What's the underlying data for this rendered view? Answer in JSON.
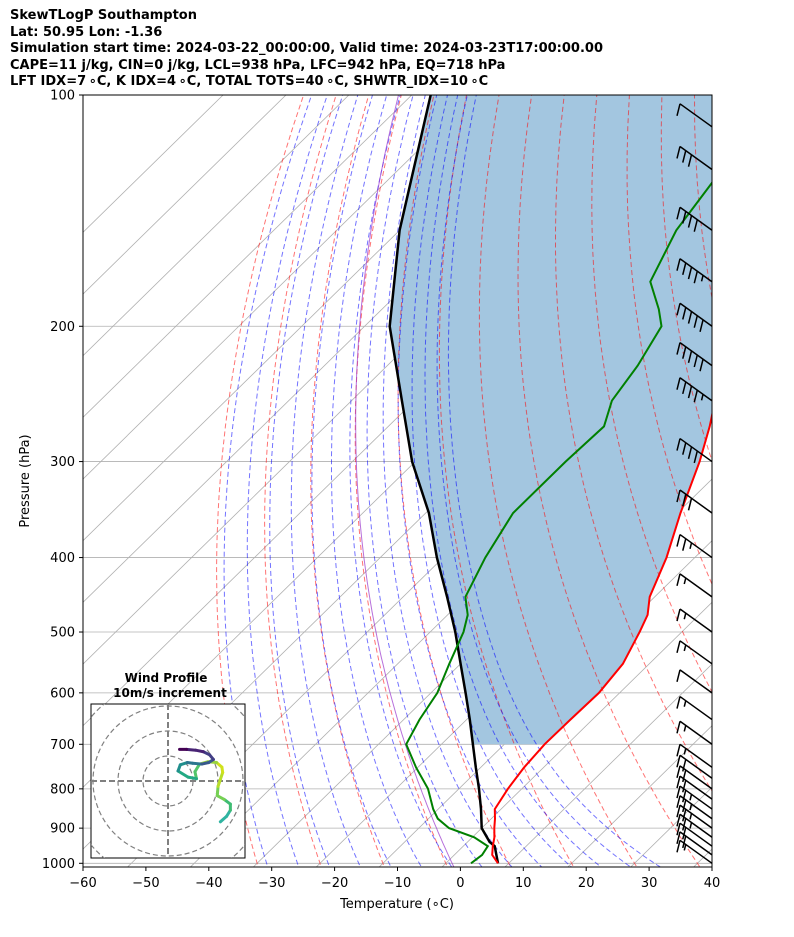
{
  "header": {
    "line1": "SkewTLogP Southampton",
    "line2": "Lat: 50.95   Lon: -1.36",
    "line3": "Simulation start time: 2024-03-22_00:00:00, Valid time: 2024-03-23T17:00:00.00",
    "line4": "CAPE=11 j/kg, CIN=0 j/kg, LCL=938 hPa, LFC=942 hPa, EQ=718 hPa",
    "line5": "LFT IDX=7 ∘C, K IDX=4 ∘C, TOTAL TOTS=40 ∘C, SHWTR_IDX=10 ∘C"
  },
  "chart_data": {
    "type": "skewt-logp",
    "xlabel": "Temperature (∘C)",
    "ylabel": "Pressure (hPa)",
    "xlim": [
      -60,
      40
    ],
    "ylim": [
      1050,
      100
    ],
    "x_ticks": [
      "−60",
      "−50",
      "−40",
      "−30",
      "−20",
      "−10",
      "0",
      "10",
      "20",
      "30",
      "40"
    ],
    "y_ticks": [
      "100",
      "200",
      "300",
      "400",
      "500",
      "600",
      "700",
      "800",
      "900",
      "1000"
    ],
    "grid": true,
    "colors": {
      "temperature": "#ff0000",
      "dewpoint": "#008000",
      "parcel": "#000000",
      "cape_fill": "#a3c6e0",
      "dry_adiabat": "#ff0000",
      "moist_adiabat": "#0000ff",
      "mixing_ratio": "#808080"
    },
    "series": [
      {
        "name": "Temperature",
        "points": [
          [
            8.3,
            1000
          ],
          [
            6.0,
            975
          ],
          [
            4.7,
            950
          ],
          [
            3.5,
            925
          ],
          [
            2.0,
            900
          ],
          [
            0.6,
            875
          ],
          [
            -1.0,
            850
          ],
          [
            -2.2,
            800
          ],
          [
            -3.1,
            750
          ],
          [
            -3.6,
            700
          ],
          [
            -3.5,
            650
          ],
          [
            -3.3,
            600
          ],
          [
            -4.2,
            550
          ],
          [
            -6.7,
            500
          ],
          [
            -8.2,
            475
          ],
          [
            -10.8,
            450
          ],
          [
            -14.5,
            400
          ],
          [
            -19.5,
            350
          ],
          [
            -24.8,
            300
          ],
          [
            -28.9,
            270
          ],
          [
            -32.2,
            250
          ],
          [
            -36.6,
            225
          ],
          [
            -42.2,
            200
          ],
          [
            -47.5,
            175
          ],
          [
            -50.5,
            160
          ],
          [
            -53.5,
            150
          ],
          [
            -55.6,
            140
          ],
          [
            -57.5,
            125
          ],
          [
            -57.3,
            110
          ],
          [
            -57.2,
            100
          ]
        ]
      },
      {
        "name": "Dewpoint",
        "points": [
          [
            4.0,
            1000
          ],
          [
            4.4,
            975
          ],
          [
            3.9,
            950
          ],
          [
            0.3,
            925
          ],
          [
            -5.2,
            900
          ],
          [
            -8.5,
            875
          ],
          [
            -10.8,
            850
          ],
          [
            -14.9,
            800
          ],
          [
            -20.3,
            750
          ],
          [
            -25.6,
            700
          ],
          [
            -27.5,
            650
          ],
          [
            -29.0,
            600
          ],
          [
            -31.8,
            550
          ],
          [
            -34.7,
            500
          ],
          [
            -36.8,
            475
          ],
          [
            -40.1,
            450
          ],
          [
            -43.3,
            400
          ],
          [
            -46.1,
            350
          ],
          [
            -46.1,
            300
          ],
          [
            -45.7,
            270
          ],
          [
            -48.6,
            250
          ],
          [
            -50.2,
            225
          ],
          [
            -52.8,
            200
          ],
          [
            -56.0,
            190
          ],
          [
            -61.8,
            175
          ],
          [
            -66.0,
            150
          ],
          [
            -68.6,
            125
          ],
          [
            -70.6,
            100
          ]
        ]
      },
      {
        "name": "Parcel",
        "points": [
          [
            8.3,
            1000
          ],
          [
            5.0,
            950
          ],
          [
            3.5,
            938
          ],
          [
            0.0,
            900
          ],
          [
            -3.2,
            850
          ],
          [
            -6.8,
            800
          ],
          [
            -10.8,
            750
          ],
          [
            -15.0,
            700
          ],
          [
            -19.5,
            650
          ],
          [
            -24.5,
            600
          ],
          [
            -30.0,
            550
          ],
          [
            -36.0,
            500
          ],
          [
            -43.0,
            450
          ],
          [
            -51.0,
            400
          ],
          [
            -59.5,
            350
          ],
          [
            -70.5,
            300
          ],
          [
            -82.0,
            250
          ],
          [
            -96.0,
            200
          ],
          [
            -110.0,
            150
          ],
          [
            -127.0,
            100
          ]
        ]
      }
    ],
    "wind_barbs": {
      "pressure_hpa": [
        1000,
        975,
        950,
        925,
        900,
        875,
        850,
        825,
        800,
        775,
        750,
        700,
        650,
        600,
        550,
        500,
        450,
        400,
        350,
        300,
        250,
        225,
        200,
        175,
        150,
        125,
        110
      ],
      "speed_kt": [
        15,
        20,
        20,
        25,
        25,
        25,
        25,
        20,
        20,
        20,
        15,
        15,
        15,
        10,
        15,
        15,
        15,
        25,
        30,
        40,
        45,
        50,
        50,
        45,
        40,
        30,
        10
      ]
    },
    "inset": {
      "title": "Wind Profile",
      "subtitle": "10m/s increment",
      "hodograph_uv": [
        [
          6.8,
          -5.3
        ],
        [
          7.6,
          -4.6
        ],
        [
          8.1,
          -3.8
        ],
        [
          8.1,
          -3.0
        ],
        [
          7.3,
          -2.4
        ],
        [
          6.4,
          -1.9
        ],
        [
          6.5,
          -0.7
        ],
        [
          6.8,
          0.2
        ],
        [
          7.1,
          1.1
        ],
        [
          7.0,
          1.8
        ],
        [
          6.3,
          2.4
        ],
        [
          5.2,
          2.5
        ],
        [
          4.1,
          2.2
        ],
        [
          3.5,
          1.2
        ],
        [
          3.7,
          0.3
        ],
        [
          2.6,
          0.5
        ],
        [
          1.3,
          1.3
        ],
        [
          1.6,
          2.1
        ],
        [
          2.5,
          2.4
        ],
        [
          3.2,
          2.3
        ],
        [
          4.4,
          2.2
        ],
        [
          5.3,
          2.4
        ],
        [
          5.9,
          2.8
        ],
        [
          5.4,
          3.4
        ],
        [
          4.6,
          3.8
        ],
        [
          3.6,
          4.0
        ],
        [
          2.4,
          4.1
        ],
        [
          1.5,
          4.1
        ]
      ]
    }
  }
}
